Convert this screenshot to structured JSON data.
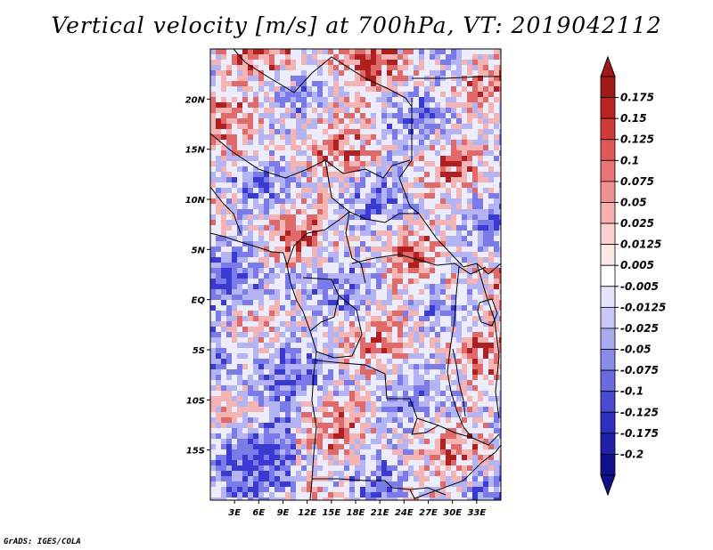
{
  "title": "Vertical velocity [m/s] at 700hPa, VT: 2019042112",
  "credit": "GrADS: IGES/COLA",
  "map": {
    "variable": "Vertical velocity",
    "units": "m/s",
    "level": "700hPa",
    "valid_time": "2019042112",
    "lon_range": [
      0,
      36
    ],
    "lat_range": [
      -20,
      25
    ],
    "x_ticks": [
      {
        "value": 3,
        "label": "3E"
      },
      {
        "value": 6,
        "label": "6E"
      },
      {
        "value": 9,
        "label": "9E"
      },
      {
        "value": 12,
        "label": "12E"
      },
      {
        "value": 15,
        "label": "15E"
      },
      {
        "value": 18,
        "label": "18E"
      },
      {
        "value": 21,
        "label": "21E"
      },
      {
        "value": 24,
        "label": "24E"
      },
      {
        "value": 27,
        "label": "27E"
      },
      {
        "value": 30,
        "label": "30E"
      },
      {
        "value": 33,
        "label": "33E"
      }
    ],
    "y_ticks": [
      {
        "value": 20,
        "label": "20N"
      },
      {
        "value": 15,
        "label": "15N"
      },
      {
        "value": 10,
        "label": "10N"
      },
      {
        "value": 5,
        "label": "5N"
      },
      {
        "value": 0,
        "label": "EQ"
      },
      {
        "value": -5,
        "label": "5S"
      },
      {
        "value": -10,
        "label": "10S"
      },
      {
        "value": -15,
        "label": "15S"
      }
    ],
    "colorbar": {
      "labels": [
        "0.175",
        "0.15",
        "0.125",
        "0.1",
        "0.075",
        "0.05",
        "0.025",
        "0.0125",
        "0.005",
        "-0.005",
        "-0.0125",
        "-0.025",
        "-0.05",
        "-0.075",
        "-0.1",
        "-0.125",
        "-0.175",
        "-0.2"
      ],
      "colors": [
        "#a01818",
        "#bc2424",
        "#d23a3a",
        "#e05858",
        "#e87474",
        "#f09292",
        "#f6b0b0",
        "#fad0d0",
        "#fde8e8",
        "#ffffff",
        "#e4e4fc",
        "#c8c8f6",
        "#aaaaf0",
        "#8a8ae8",
        "#6a6ade",
        "#4a4ad0",
        "#3030c0",
        "#2020a8",
        "#10108a"
      ],
      "top_arrow_color": "#a01818",
      "bottom_arrow_color": "#10108a"
    },
    "field_colors": {
      "strong_up": "#3a3ad2",
      "up": "#7a7ae8",
      "weak_up": "#b4b4f4",
      "neutral": "#ececfc",
      "weak_down": "#f4b4b4",
      "down": "#e06a6a",
      "strong_down": "#b02020"
    }
  }
}
